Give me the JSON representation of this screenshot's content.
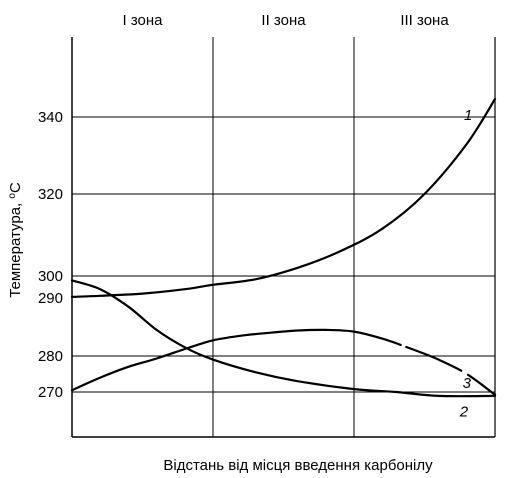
{
  "chart_data": {
    "type": "line",
    "xlabel": "Відстань від місця введення карбонілу",
    "ylabel": "Температура, °С",
    "ylabel_parts": {
      "main": "Температура, ",
      "degree": "о",
      "unit": "С"
    },
    "zones": [
      "І зона",
      "ІІ зона",
      "ІІІ зона"
    ],
    "x_range": [
      0,
      3
    ],
    "y_ticks": [
      270,
      280,
      290,
      300,
      320,
      340
    ],
    "y_tick_labels": [
      "270",
      "280",
      "290",
      "300",
      "320",
      "340"
    ],
    "grid": true,
    "series": [
      {
        "name": "1",
        "x": [
          0,
          0.2,
          0.5,
          0.8,
          1.0,
          1.3,
          1.6,
          1.9,
          2.2,
          2.5,
          2.8,
          3.0
        ],
        "y": [
          290.5,
          291,
          292,
          294,
          296,
          298.5,
          302,
          306,
          311.5,
          320,
          333,
          344
        ]
      },
      {
        "name": "2",
        "x": [
          0,
          0.2,
          0.4,
          0.6,
          0.8,
          1.0,
          1.3,
          1.6,
          2.0,
          2.3,
          2.6,
          3.0
        ],
        "y": [
          298,
          294,
          288.5,
          284.5,
          281.5,
          279,
          275.5,
          273,
          270.8,
          270,
          269.3,
          269.3
        ]
      },
      {
        "name": "3",
        "x": [
          0,
          0.2,
          0.4,
          0.6,
          0.8,
          1.0,
          1.2,
          1.4,
          1.6,
          1.8,
          2.0,
          2.2,
          2.4,
          2.6,
          2.8,
          3.0
        ],
        "y": [
          270.5,
          274,
          277,
          279.3,
          281.2,
          282.7,
          283.5,
          284,
          284.4,
          284.5,
          284.2,
          283,
          281.3,
          279,
          275,
          269.5
        ]
      }
    ]
  }
}
